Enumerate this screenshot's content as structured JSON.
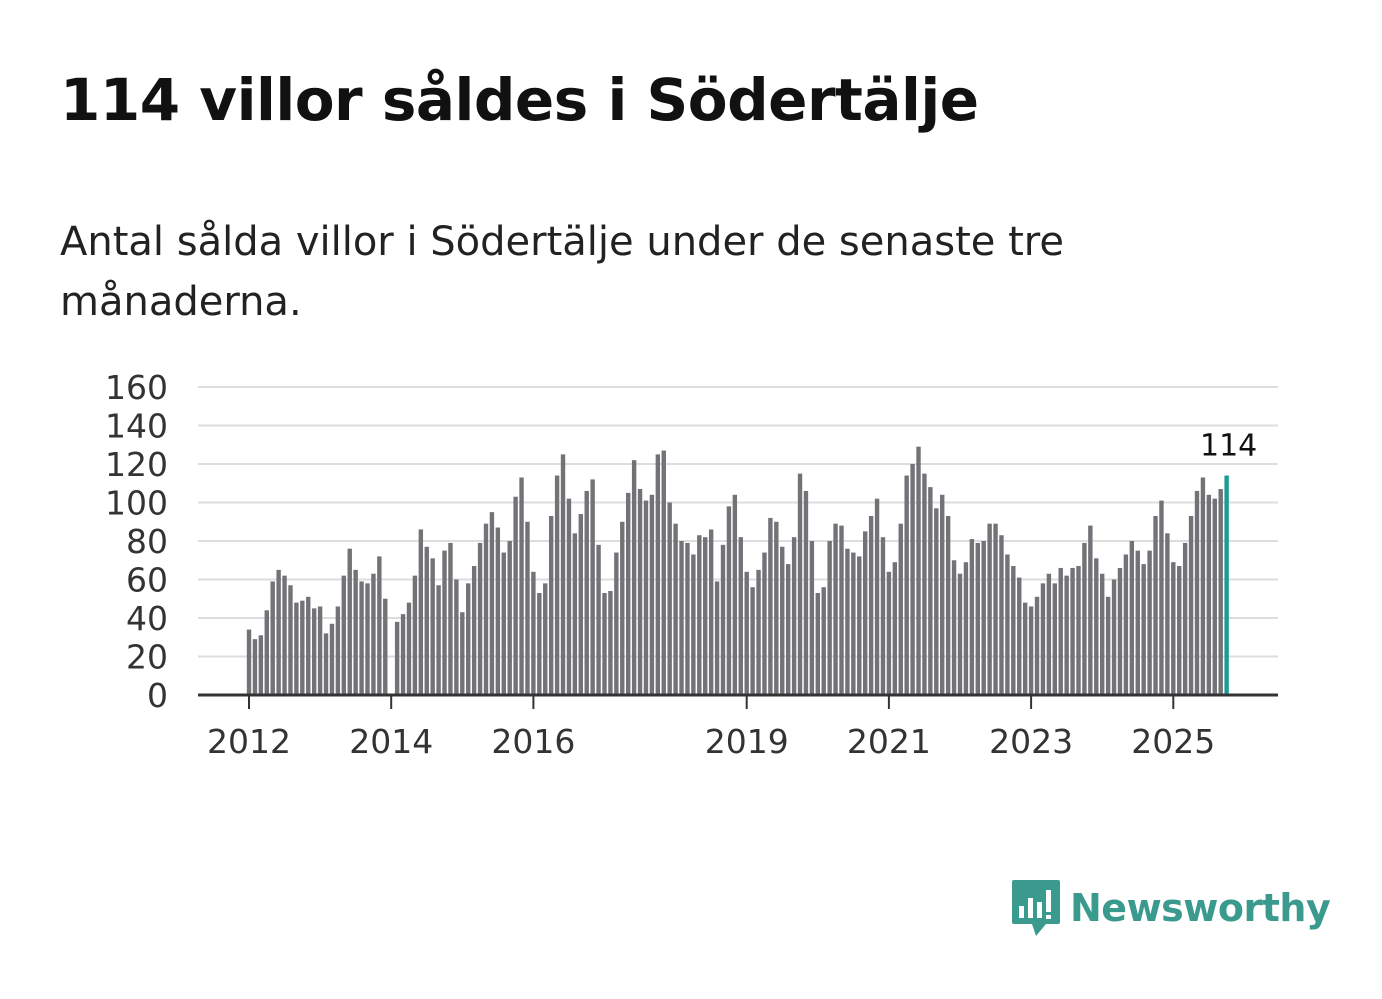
{
  "title": "114 villor såldes i Södertälje",
  "subtitle": "Antal sålda villor i Södertälje under de senaste tre månaderna.",
  "brand": {
    "name": "Newsworthy",
    "color": "#3a9a8e",
    "icon": "newsworthy-chart-bubble-icon"
  },
  "colors": {
    "bar": "#737277",
    "highlight": "#1a9c93",
    "grid": "#dddddd",
    "axis": "#333333"
  },
  "chart_data": {
    "type": "bar",
    "title": "",
    "xlabel": "",
    "ylabel": "",
    "ylim": [
      0,
      160
    ],
    "yticks": [
      0,
      20,
      40,
      60,
      80,
      100,
      120,
      140,
      160
    ],
    "grid": true,
    "x_tick_labels": [
      {
        "label": "2012",
        "index": 0
      },
      {
        "label": "2014",
        "index": 24
      },
      {
        "label": "2016",
        "index": 48
      },
      {
        "label": "2019",
        "index": 84
      },
      {
        "label": "2021",
        "index": 108
      },
      {
        "label": "2023",
        "index": 132
      },
      {
        "label": "2025",
        "index": 156
      }
    ],
    "highlight_label": "114",
    "series": [
      {
        "name": "Antal sålda villor (senaste tre månaderna)",
        "start": "2012-01",
        "values": [
          34,
          29,
          31,
          44,
          59,
          65,
          62,
          57,
          48,
          49,
          51,
          45,
          46,
          32,
          37,
          46,
          62,
          76,
          65,
          59,
          58,
          63,
          72,
          50,
          0,
          38,
          42,
          48,
          62,
          86,
          77,
          71,
          57,
          75,
          79,
          60,
          43,
          58,
          67,
          79,
          89,
          95,
          87,
          74,
          80,
          103,
          113,
          90,
          64,
          53,
          58,
          93,
          114,
          125,
          102,
          84,
          94,
          106,
          112,
          78,
          53,
          54,
          74,
          90,
          105,
          122,
          107,
          101,
          104,
          125,
          127,
          100,
          89,
          80,
          79,
          73,
          83,
          82,
          86,
          59,
          78,
          98,
          104,
          82,
          64,
          56,
          65,
          74,
          92,
          90,
          77,
          68,
          82,
          115,
          106,
          80,
          53,
          56,
          80,
          89,
          88,
          76,
          74,
          72,
          85,
          93,
          102,
          82,
          64,
          69,
          89,
          114,
          120,
          129,
          115,
          108,
          97,
          104,
          93,
          70,
          63,
          69,
          81,
          79,
          80,
          89,
          89,
          83,
          73,
          67,
          61,
          48,
          46,
          51,
          58,
          63,
          58,
          66,
          62,
          66,
          67,
          79,
          88,
          71,
          63,
          51,
          60,
          66,
          73,
          80,
          75,
          68,
          75,
          93,
          101,
          84,
          69,
          67,
          79,
          93,
          106,
          113,
          104,
          102,
          107,
          114
        ]
      }
    ]
  }
}
